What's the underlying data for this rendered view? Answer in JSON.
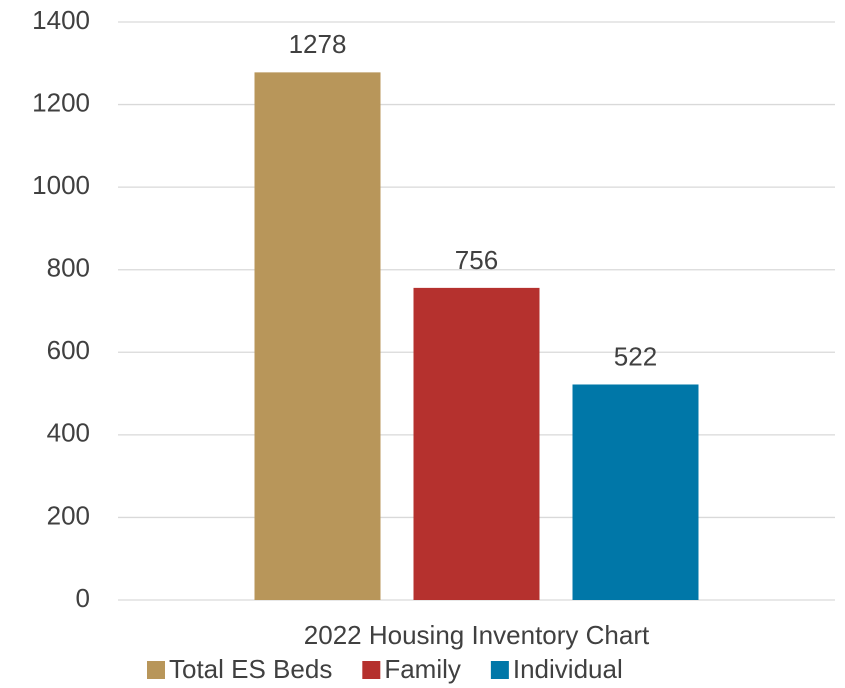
{
  "chart_data": {
    "type": "bar",
    "categories": [
      "2022 Housing Inventory Chart"
    ],
    "series": [
      {
        "name": "Total ES Beds",
        "color": "#b8965a",
        "values": [
          1278
        ]
      },
      {
        "name": "Family",
        "color": "#b5312e",
        "values": [
          756
        ]
      },
      {
        "name": "Individual",
        "color": "#0077a8",
        "values": [
          522
        ]
      }
    ],
    "ylim": [
      0,
      1400
    ],
    "yticks": [
      0,
      200,
      400,
      600,
      800,
      1000,
      1200,
      1400
    ],
    "grid": true,
    "legend": "bottom"
  }
}
